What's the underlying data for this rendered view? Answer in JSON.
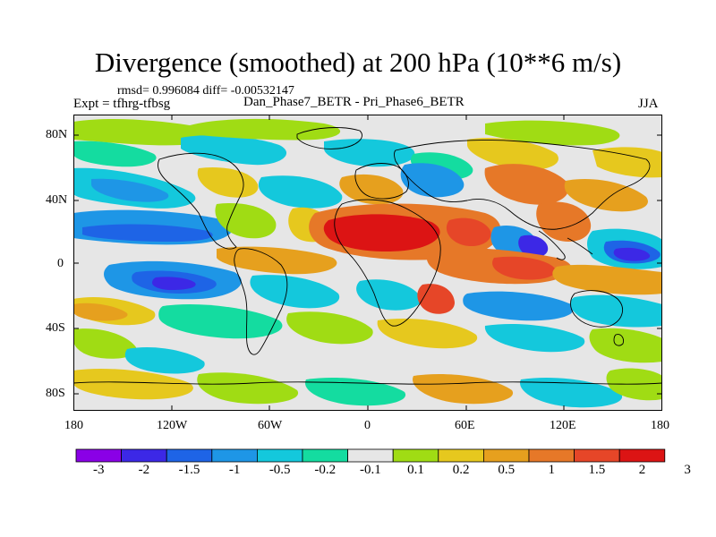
{
  "title": "Divergence (smoothed) at 200 hPa (10**6 m/s)",
  "stats": {
    "rmsd_label": "rmsd=",
    "rmsd_value": "0.996084",
    "diff_label": "diff=",
    "diff_value": "-0.00532147"
  },
  "expt_label": "Expt = tfhrg-tfbsg",
  "cases_label": "Dan_Phase7_BETR - Pri_Phase6_BETR",
  "season": "JJA",
  "map": {
    "lat_ticks": [
      "80N",
      "40N",
      "0",
      "40S",
      "80S"
    ],
    "lon_ticks": [
      "180",
      "120W",
      "60W",
      "0",
      "60E",
      "120E",
      "180"
    ]
  },
  "colorbar": {
    "colors": [
      "#8a00e6",
      "#3c28e6",
      "#1e64e6",
      "#1e96e6",
      "#14c8dc",
      "#14dca0",
      "#e6e6e6",
      "#a0dc14",
      "#e6c81e",
      "#e6a01e",
      "#e67828",
      "#e64628",
      "#dc1414"
    ],
    "labels": [
      "-3",
      "-2",
      "-1.5",
      "-1",
      "-0.5",
      "-0.2",
      "-0.1",
      "0.1",
      "0.2",
      "0.5",
      "1",
      "1.5",
      "2",
      "3"
    ]
  }
}
